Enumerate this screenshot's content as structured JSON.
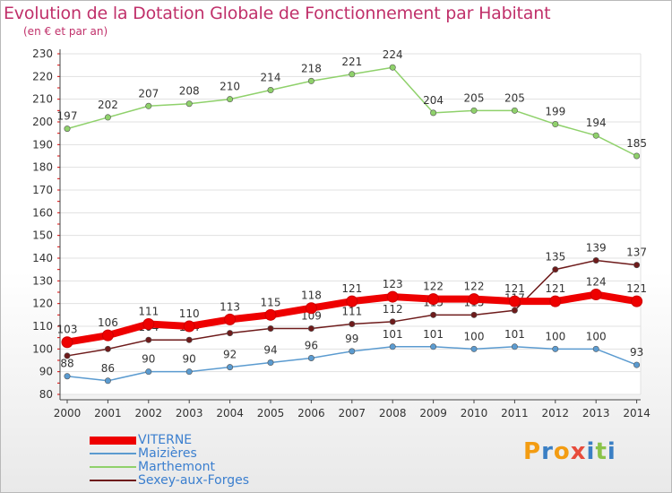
{
  "header": {
    "title": "Evolution de la Dotation Globale de Fonctionnement par Habitant",
    "subtitle": "(en € et par an)"
  },
  "logo": {
    "text": "Proxiti",
    "letters": [
      "P",
      "r",
      "o",
      "x",
      "i",
      "t",
      "i"
    ],
    "colors": [
      "#f39c12",
      "#3a7fc4",
      "#f39c12",
      "#e74c3c",
      "#3a7fc4",
      "#8bc34a",
      "#3a7fc4"
    ]
  },
  "chart_data": {
    "type": "line",
    "x": [
      "2000",
      "2001",
      "2002",
      "2003",
      "2004",
      "2005",
      "2006",
      "2007",
      "2008",
      "2009",
      "2010",
      "2011",
      "2012",
      "2013",
      "2014"
    ],
    "ylim": [
      80,
      230
    ],
    "yticks": [
      80,
      90,
      100,
      110,
      120,
      130,
      140,
      150,
      160,
      170,
      180,
      190,
      200,
      210,
      220,
      230
    ],
    "grid": "horizontal",
    "legend_position": "bottom-left",
    "series": [
      {
        "name": "Sexey-aux-Forges",
        "color": "#6e1b1b",
        "values": [
          97,
          100,
          104,
          104,
          107,
          109,
          109,
          111,
          112,
          115,
          115,
          117,
          135,
          139,
          137
        ],
        "labels": [
          "",
          "",
          "104",
          "104",
          "",
          "",
          "109",
          "111",
          "112",
          "115",
          "115",
          "117",
          "135",
          "139",
          "137"
        ]
      },
      {
        "name": "Maizières",
        "color": "#5b9bd0",
        "values": [
          88,
          86,
          90,
          90,
          92,
          94,
          96,
          99,
          101,
          101,
          100,
          101,
          100,
          100,
          93
        ],
        "labels": [
          "88",
          "86",
          "90",
          "90",
          "92",
          "94",
          "96",
          "99",
          "101",
          "101",
          "100",
          "101",
          "100",
          "100",
          "93"
        ]
      },
      {
        "name": "Marthemont",
        "color": "#8fd16b",
        "values": [
          197,
          202,
          207,
          208,
          210,
          214,
          218,
          221,
          224,
          204,
          205,
          205,
          199,
          194,
          185
        ],
        "labels": [
          "197",
          "202",
          "207",
          "208",
          "210",
          "214",
          "218",
          "221",
          "224",
          "204",
          "205",
          "205",
          "199",
          "194",
          "185"
        ]
      },
      {
        "name": "VITERNE",
        "color": "#ee0000",
        "values": [
          103,
          106,
          111,
          110,
          113,
          115,
          118,
          121,
          123,
          122,
          122,
          121,
          121,
          124,
          121
        ],
        "labels": [
          "103",
          "106",
          "111",
          "110",
          "113",
          "115",
          "118",
          "121",
          "123",
          "122",
          "122",
          "121",
          "121",
          "124",
          "121"
        ]
      }
    ],
    "legend": [
      {
        "name": "VITERNE",
        "color": "#ee0000",
        "width": "thick"
      },
      {
        "name": "Maizières",
        "color": "#5b9bd0",
        "width": "thin"
      },
      {
        "name": "Marthemont",
        "color": "#8fd16b",
        "width": "thin"
      },
      {
        "name": "Sexey-aux-Forges",
        "color": "#6e1b1b",
        "width": "thin"
      }
    ]
  }
}
